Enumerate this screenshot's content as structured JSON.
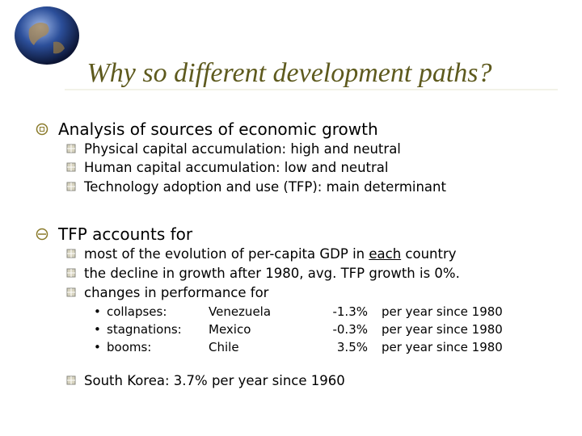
{
  "header": {
    "title": "Why so different development paths?"
  },
  "bullets": [
    {
      "text": "Analysis of sources of economic growth",
      "items": [
        "Physical capital accumulation: high and neutral",
        "Human capital accumulation: low and neutral",
        "Technology adoption and use (TFP): main determinant"
      ]
    },
    {
      "text": "TFP accounts for",
      "items": [
        [
          "most of the evolution of per-capita GDP in ",
          "each",
          " country"
        ],
        "the decline in growth after 1980, avg. TFP growth is 0%.",
        "changes in performance for"
      ],
      "table": {
        "rows": [
          [
            "collapses:",
            "Venezuela",
            "-1.3%",
            "per year since 1980"
          ],
          [
            "stagnations:",
            "Mexico",
            "-0.3%",
            "per year since 1980"
          ],
          [
            "booms:",
            "Chile",
            "3.5%",
            "per year since 1980"
          ]
        ]
      },
      "last": "South Korea: 3.7% per year since 1960"
    }
  ]
}
